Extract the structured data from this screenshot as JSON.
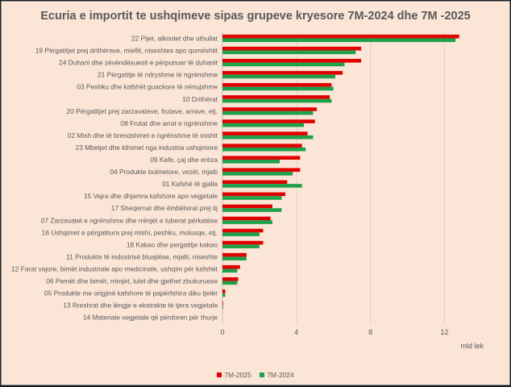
{
  "chart_data": {
    "type": "bar",
    "orientation": "horizontal",
    "title": "Ecuria e importit te ushqimeve sipas grupeve kryesore 7M-2024 dhe 7M -2025",
    "xlabel": "mld lek",
    "ylabel": "",
    "xlim": [
      0,
      14
    ],
    "xticks": [
      0,
      4,
      8,
      12
    ],
    "grid": true,
    "legend_position": "bottom",
    "categories": [
      "22 Pijet, alkoolet dhe uthullat",
      "19 Përgatitjet prej drithërave, miellit, niseshtes apo qumështit",
      "24 Duhani dhe zëvëndësuesit e përpunuar të duhanit",
      "21 Përgatitje të ndryshme të ngrënshme",
      "03 Peshku dhe kafshët guackore të nënujshme",
      "10 Drithërat",
      "20 Përgatitjet prej zarzavateve, frutave, arrave, etj.",
      "08 Frutat dhe arrat e ngrënshme",
      "02 Mish dhe të brendshmet e ngrënshme të mishit",
      "23 Mbetjet dhe kthimet nga industria ushqimore",
      "09 Kafe, çaj dhe erëza",
      "04 Produkte bulmetore, vezët, mjalti",
      "01 Kafshë të gjalla",
      "15 Vajra dhe dhjamra kafshore apo vegjetale",
      "17 Sheqernat dhe ëmbëlsirat prej tij",
      "07 Zarzavatet e ngrënshme dhe rrënjët e tuberat përkatëse",
      "16 Ushqimet e përgatitura prej mishi, peshku, molusqe, etj.",
      "18 Kakao dhe pergatitje kakao",
      "11 Produkte të industrisë bluajtëse, mjalti, niseshte",
      "12 Farat vajore, bimët industriale apo medicinale, ushqim për kafshët",
      "06 Pemët dhe bimët, rrënjët, lulet dhe gjethet zbukuruese",
      "05 Produkte me origjinë kafshore të papërfshira diku tjetër",
      "13 Rreshrat dhe lëngje e ekstrakte të tjera vegjetale",
      "14 Materiale vegjetale që përdoren për thurje"
    ],
    "series": [
      {
        "name": "7M-2025",
        "color": "#e00000",
        "values": [
          12.8,
          7.5,
          7.5,
          6.5,
          5.9,
          5.8,
          5.1,
          5.0,
          4.6,
          4.3,
          4.2,
          4.2,
          3.5,
          3.4,
          2.7,
          2.6,
          2.2,
          2.2,
          1.3,
          0.95,
          0.85,
          0.15,
          0.03,
          0.0
        ]
      },
      {
        "name": "7M-2024",
        "color": "#1fa04a",
        "values": [
          12.6,
          7.2,
          6.6,
          6.1,
          6.0,
          5.9,
          4.9,
          4.4,
          4.9,
          4.5,
          3.1,
          3.8,
          4.3,
          3.2,
          3.2,
          2.7,
          2.0,
          2.0,
          1.3,
          0.8,
          0.8,
          0.15,
          0.03,
          0.0
        ]
      }
    ]
  }
}
